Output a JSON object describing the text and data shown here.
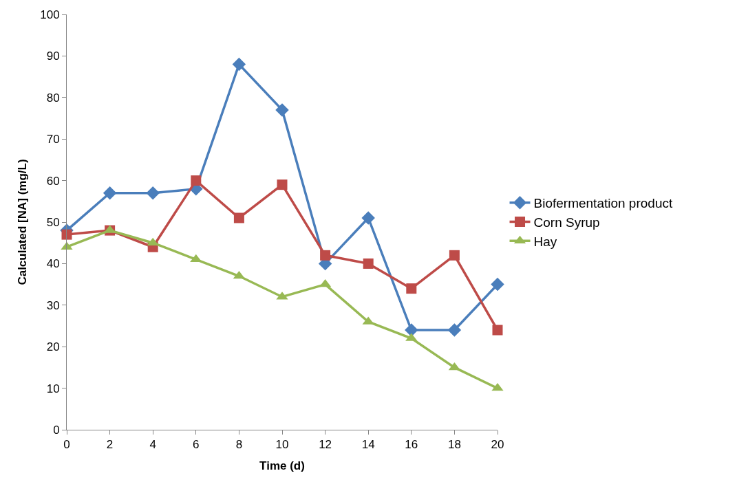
{
  "chart_data": {
    "type": "line",
    "xlabel": "Time (d)",
    "ylabel": "Calculated [NA] (mg/L)",
    "x": [
      0,
      2,
      4,
      6,
      8,
      10,
      12,
      14,
      16,
      18,
      20
    ],
    "series": [
      {
        "name": "Biofermentation product",
        "color": "#4a7ebb",
        "marker": "diamond",
        "values": [
          48,
          57,
          57,
          58,
          88,
          77,
          40,
          51,
          24,
          24,
          35
        ]
      },
      {
        "name": "Corn Syrup",
        "color": "#be4b48",
        "marker": "square",
        "values": [
          47,
          48,
          44,
          60,
          51,
          59,
          42,
          40,
          34,
          42,
          24
        ]
      },
      {
        "name": "Hay",
        "color": "#98b954",
        "marker": "triangle",
        "values": [
          44,
          48,
          45,
          41,
          37,
          32,
          35,
          26,
          22,
          15,
          10
        ]
      }
    ],
    "xlim": [
      0,
      20
    ],
    "xticks": [
      0,
      2,
      4,
      6,
      8,
      10,
      12,
      14,
      16,
      18,
      20
    ],
    "ylim": [
      0,
      100
    ],
    "yticks": [
      0,
      10,
      20,
      30,
      40,
      50,
      60,
      70,
      80,
      90,
      100
    ],
    "legend": "right",
    "line_style": "solid"
  }
}
